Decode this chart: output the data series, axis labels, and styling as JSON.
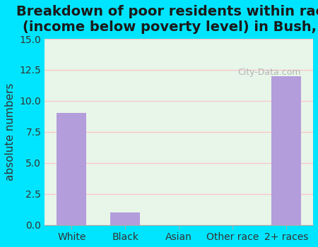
{
  "title": "Breakdown of poor residents within races\n(income below poverty level) in Bush, IL",
  "categories": [
    "White",
    "Black",
    "Asian",
    "Other race",
    "2+ races"
  ],
  "values": [
    9,
    1,
    0,
    0,
    12
  ],
  "bar_color": "#b39ddb",
  "ylabel": "absolute numbers",
  "ylim": [
    0,
    15
  ],
  "yticks": [
    0,
    2.5,
    5,
    7.5,
    10,
    12.5,
    15
  ],
  "background_outer": "#00e5ff",
  "background_inner": "#e8f5e9",
  "grid_color": "#f8c8c8",
  "title_fontsize": 14,
  "axis_label_fontsize": 11,
  "tick_fontsize": 10,
  "watermark_text": "City-Data.com"
}
